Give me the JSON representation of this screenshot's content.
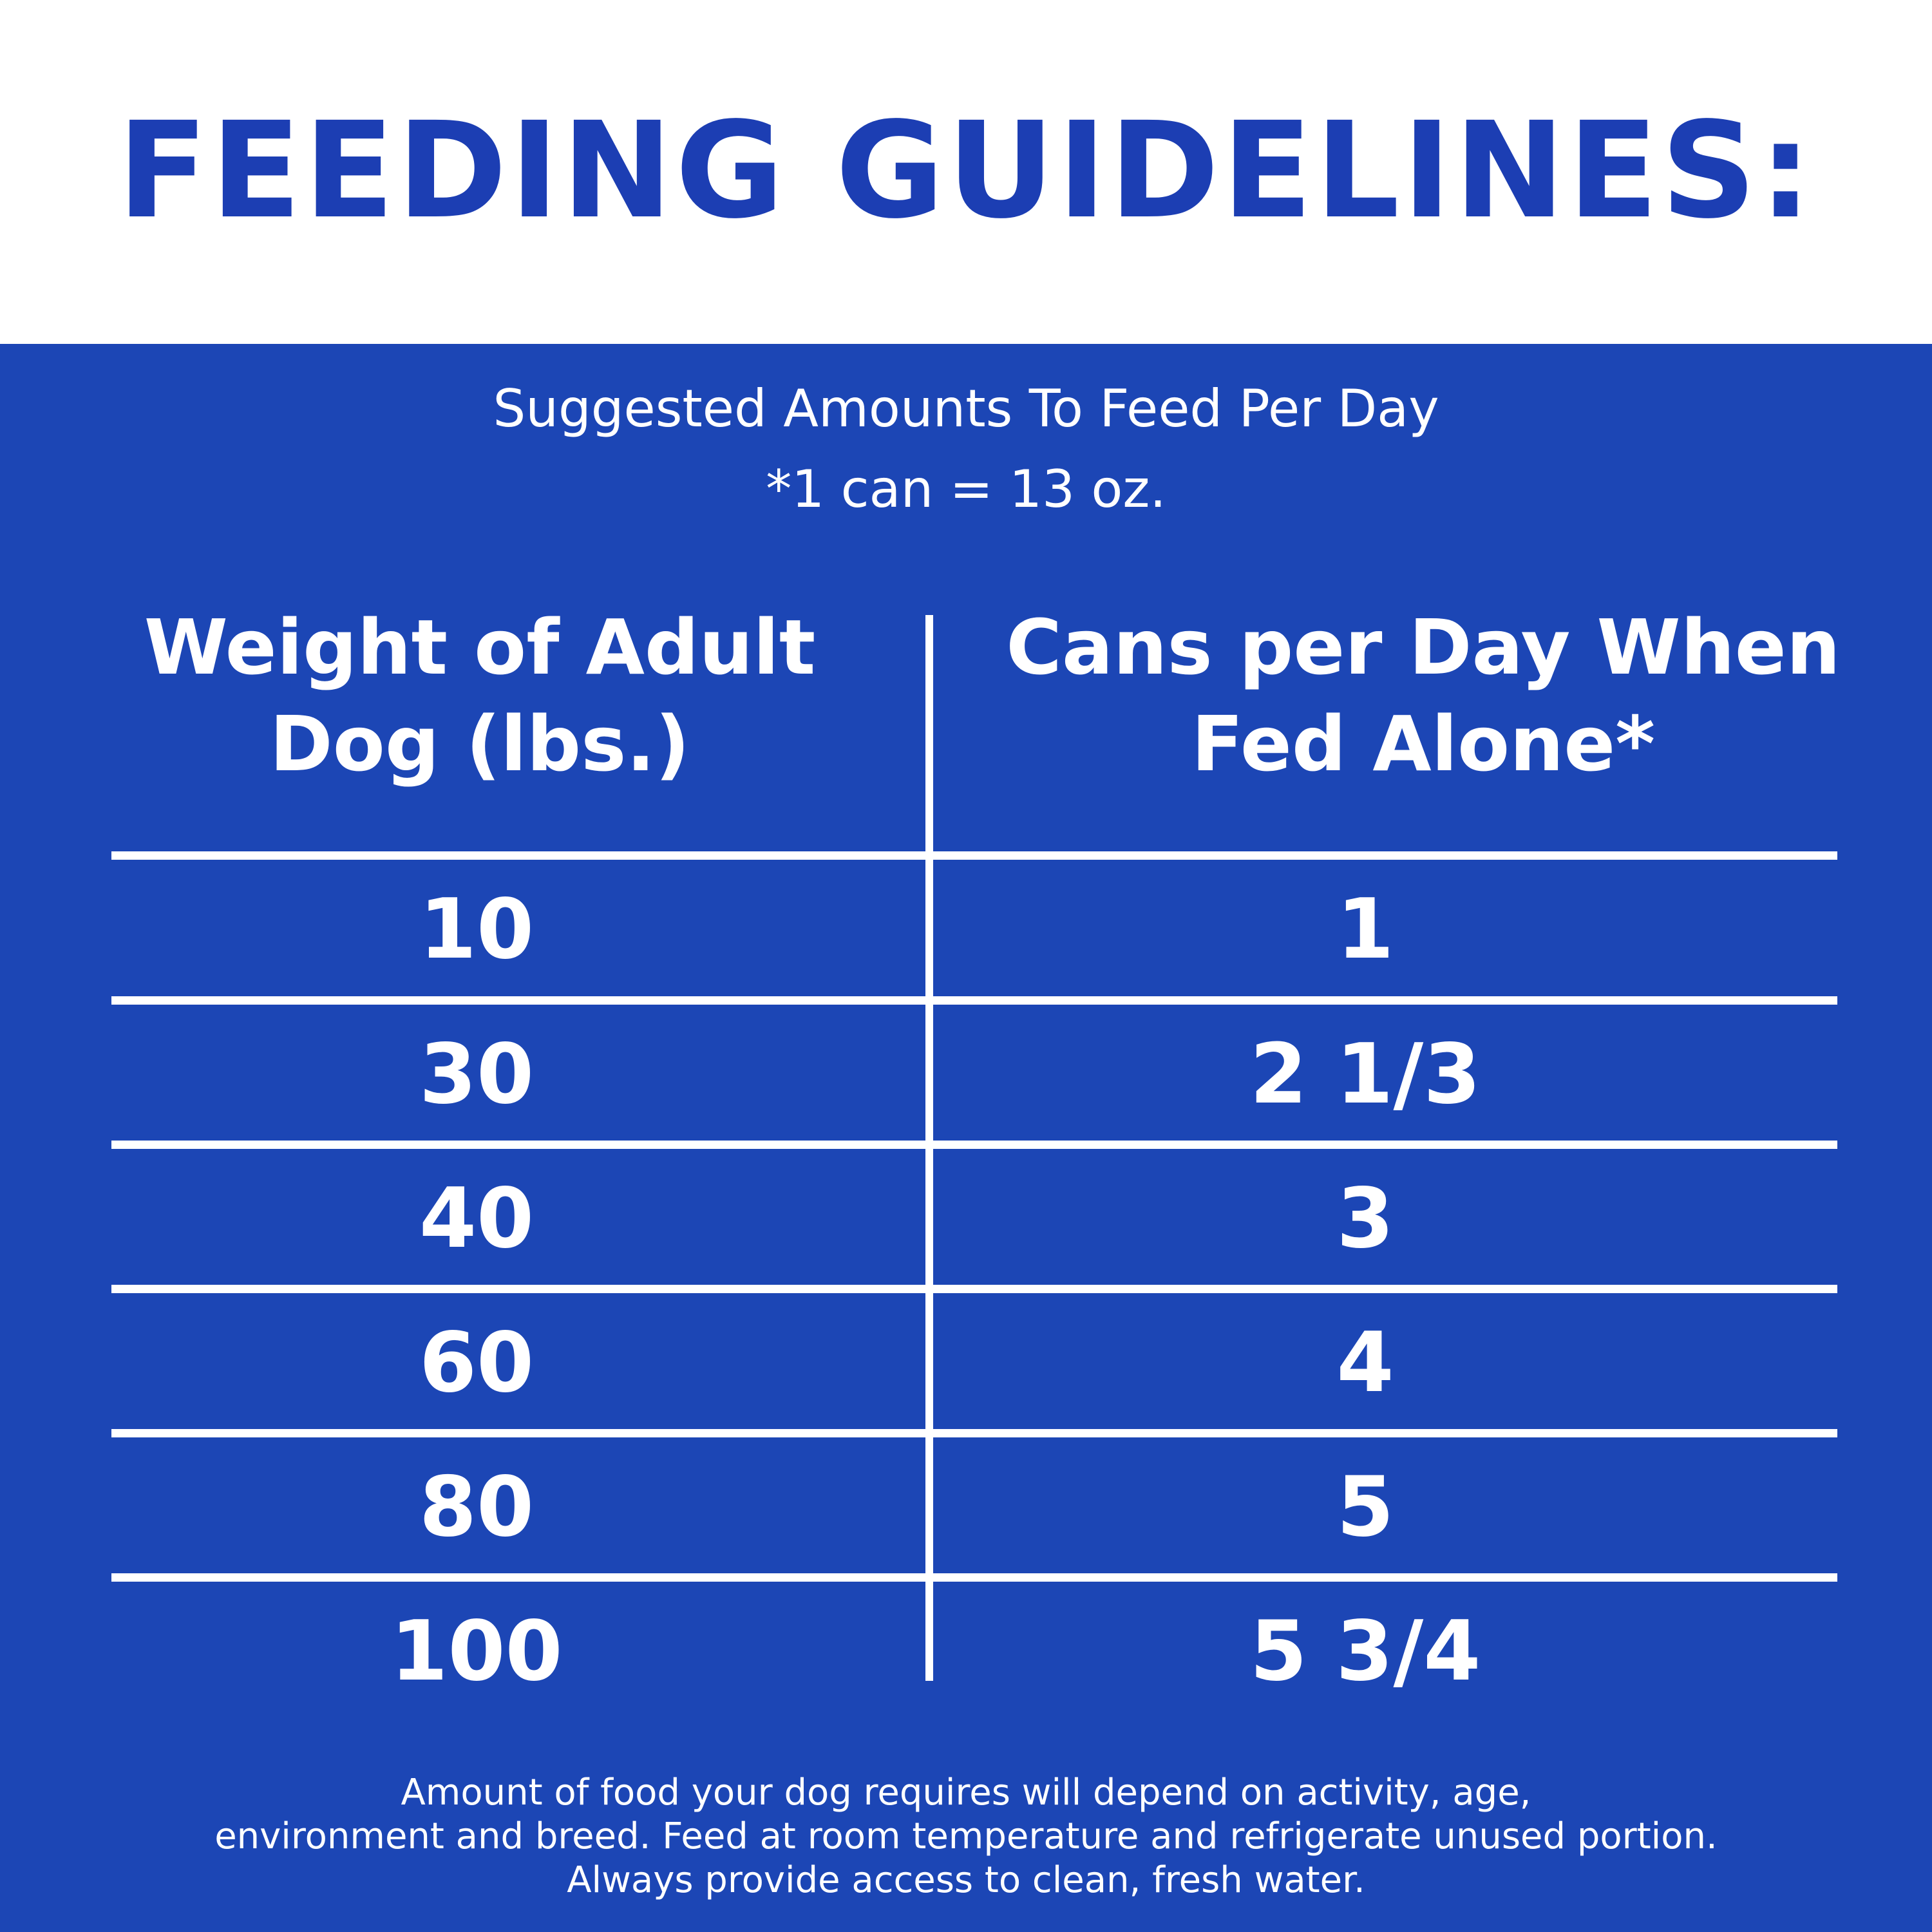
{
  "title": "FEEDING GUIDELINES:",
  "subtitle": {
    "line1": "Suggested Amounts To Feed Per Day",
    "line2": "*1 can = 13 oz."
  },
  "table": {
    "headers": {
      "weight": [
        "Weight of Adult",
        "Dog (lbs.)"
      ],
      "cans": [
        "Cans per Day When",
        "Fed Alone*"
      ]
    },
    "rows": [
      {
        "weight": "10",
        "cans": "1"
      },
      {
        "weight": "30",
        "cans": "2 1/3"
      },
      {
        "weight": "40",
        "cans": "3"
      },
      {
        "weight": "60",
        "cans": "4"
      },
      {
        "weight": "80",
        "cans": "5"
      },
      {
        "weight": "100",
        "cans": "5 3/4"
      }
    ]
  },
  "footnote": {
    "line1": "Amount of food your dog requires will depend on activity, age,",
    "line2": "environment and breed. Feed at room temperature and refrigerate unused portion.",
    "line3": "Always provide access to clean, fresh water."
  },
  "colors": {
    "title_blue": "#1c3eb3",
    "panel_blue": "#1c46b5",
    "text_white": "#ffffff"
  }
}
